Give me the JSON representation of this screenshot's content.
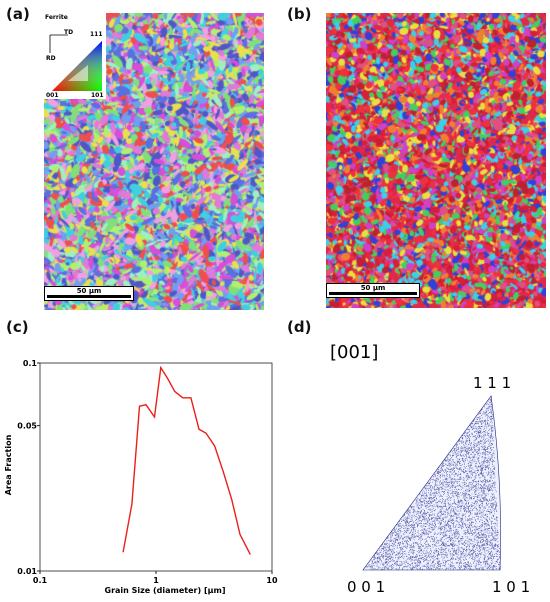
{
  "panels": {
    "a": "(a)",
    "b": "(b)",
    "c": "(c)",
    "d": "(d)"
  },
  "ebsd_a": {
    "scale_bar": "50 μm",
    "legend": {
      "title": "Ferrite",
      "td": "TD",
      "rd": "RD",
      "corner_111": "111",
      "corner_001": "001",
      "corner_101": "101"
    }
  },
  "ebsd_b": {
    "scale_bar": "50 μm"
  },
  "chart_data": [
    {
      "type": "line",
      "xlabel": "Grain Size (diameter) [μm]",
      "ylabel": "Area Fraction",
      "xscale": "log",
      "yscale": "log",
      "xlim": [
        0.1,
        10
      ],
      "ylim": [
        0.01,
        0.1
      ],
      "xticks": [
        "0.1",
        "1",
        "10"
      ],
      "yticks": [
        "0.01",
        "0.05",
        "0.1"
      ],
      "grid": false,
      "series": [
        {
          "color": "#e8201a",
          "x": [
            0.52,
            0.62,
            0.72,
            0.82,
            0.97,
            1.1,
            1.25,
            1.45,
            1.7,
            2.0,
            2.35,
            2.7,
            3.2,
            3.8,
            4.5,
            5.3,
            6.5
          ],
          "y": [
            0.0123,
            0.021,
            0.062,
            0.063,
            0.055,
            0.095,
            0.085,
            0.073,
            0.068,
            0.068,
            0.048,
            0.046,
            0.04,
            0.03,
            0.022,
            0.015,
            0.012
          ]
        }
      ]
    },
    {
      "type": "scatter",
      "title": "[001]",
      "corner_labels": {
        "top": "1 1 1",
        "left": "0 0 1",
        "right": "1 0 1"
      },
      "point_color": "#1a237e"
    }
  ]
}
